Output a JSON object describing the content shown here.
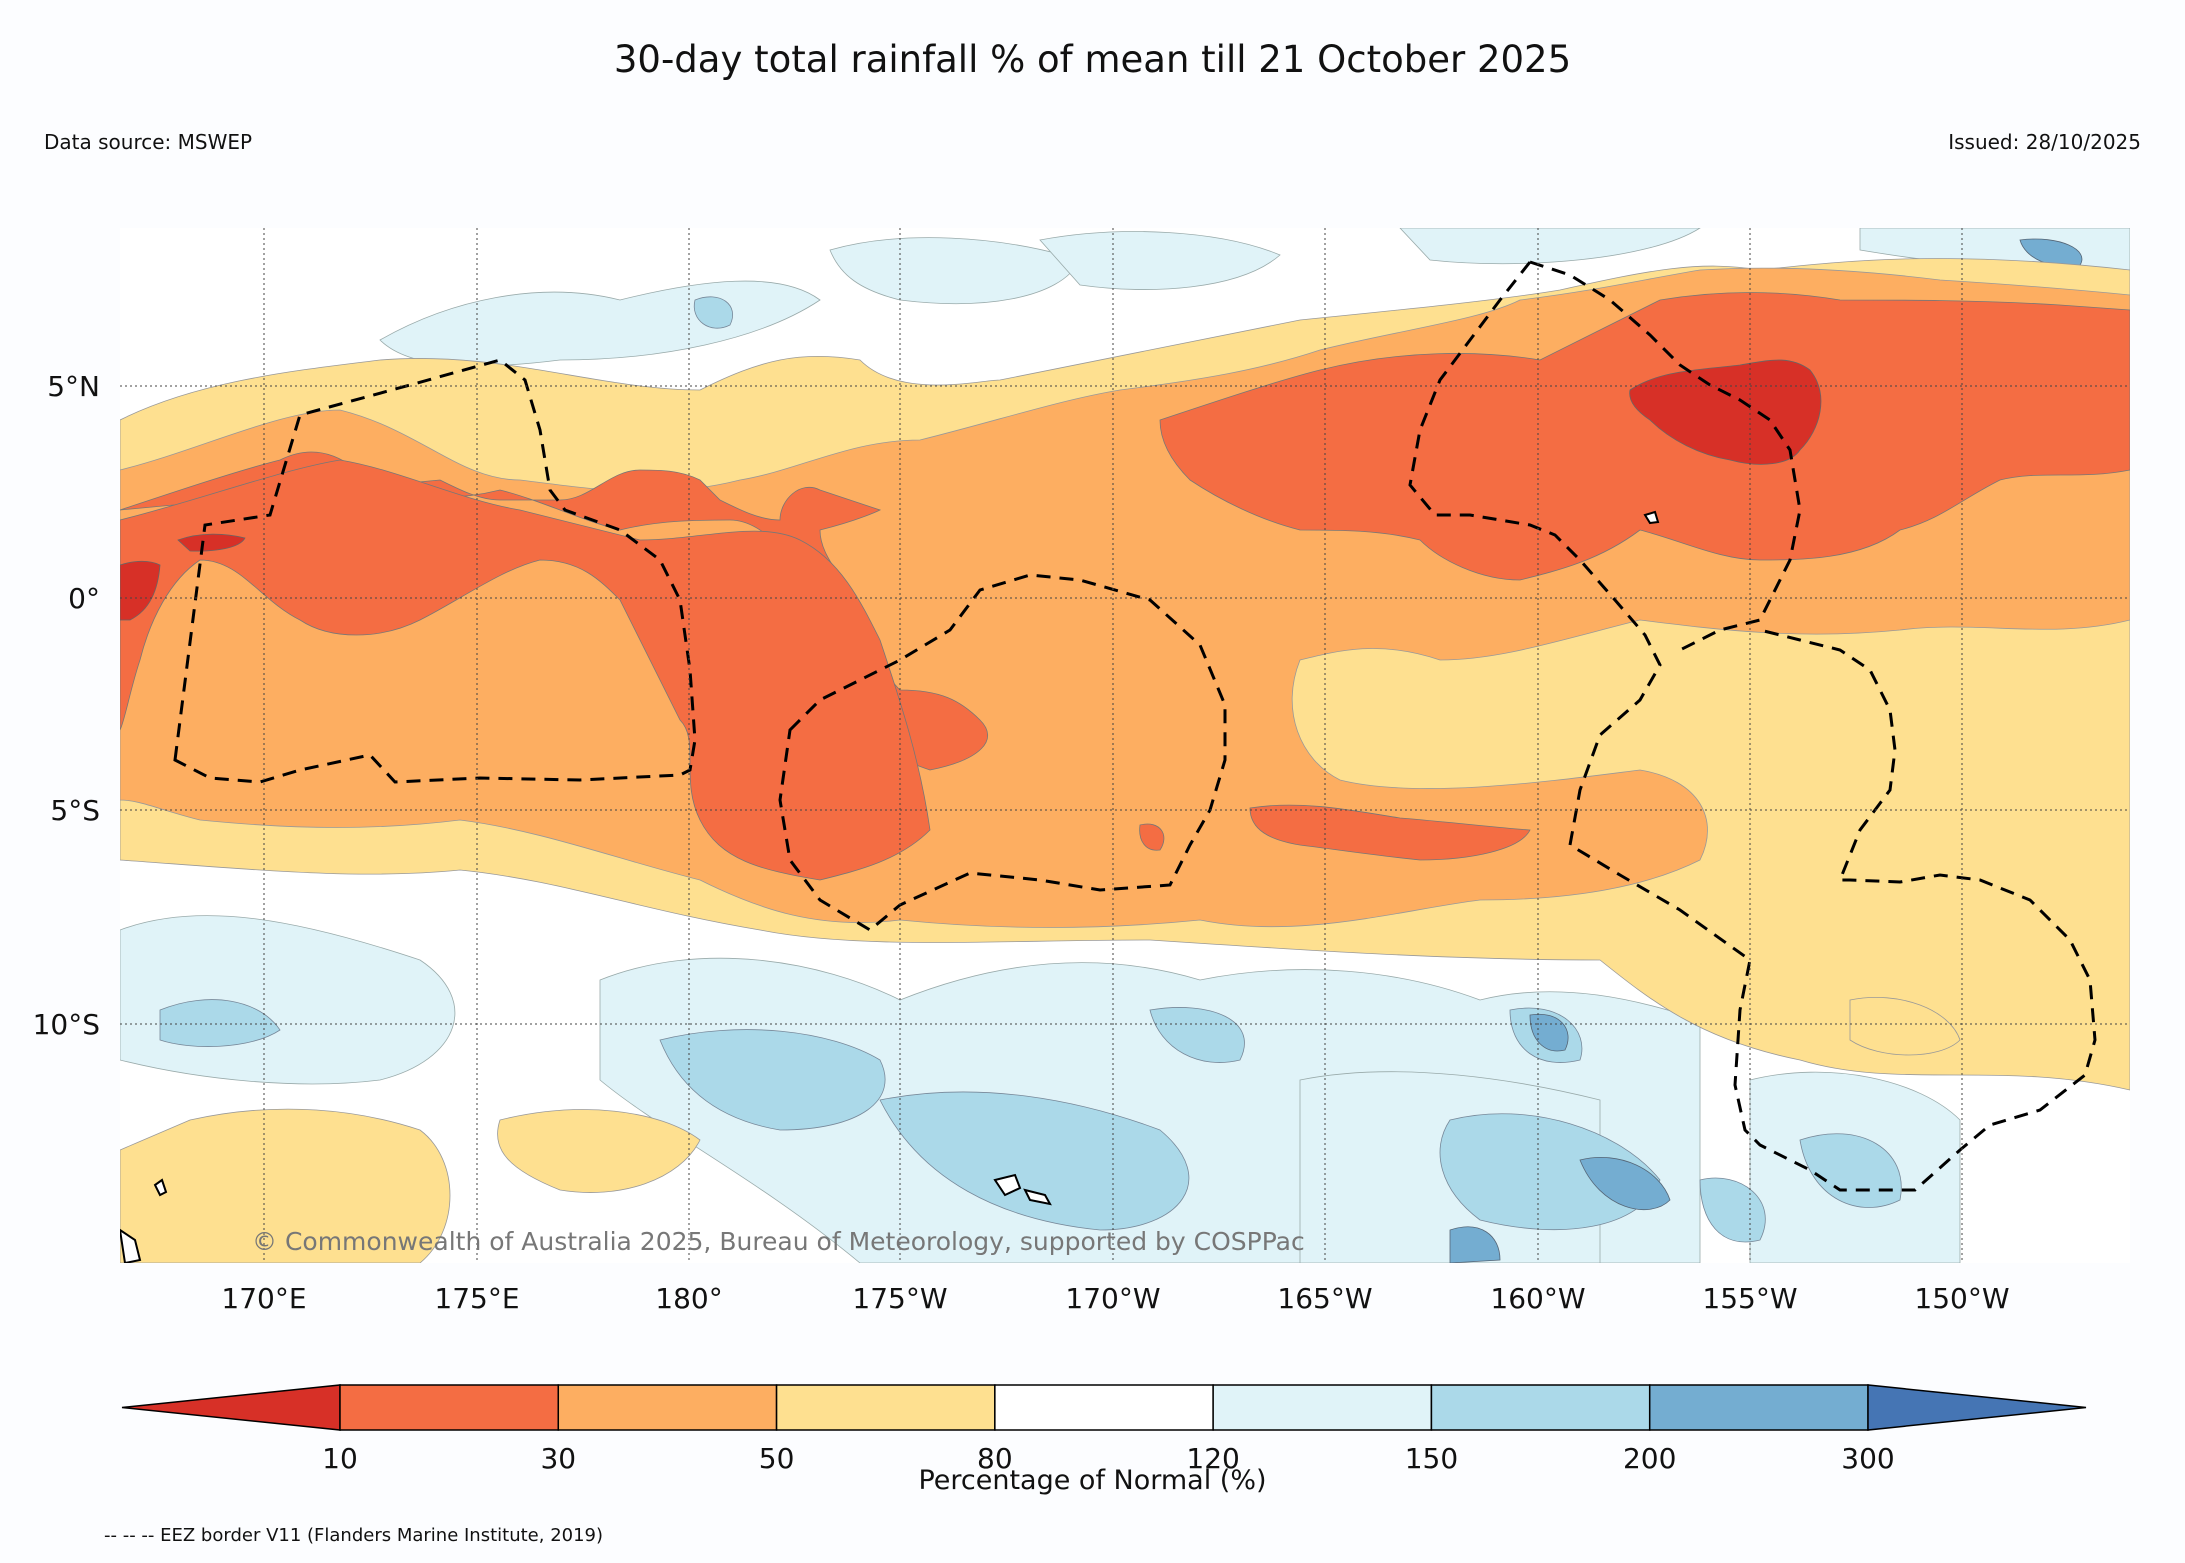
{
  "title": "30-day total rainfall % of mean till 21 October 2025",
  "data_source": "Data source: MSWEP",
  "issued": "Issued: 28/10/2025",
  "copyright": "© Commonwealth of Australia 2025, Bureau of Meteorology, supported by COSPPac",
  "footer": "-- -- -- EEZ border V11 (Flanders Marine Institute, 2019)",
  "map": {
    "lat_labels": [
      "5°N",
      "0°",
      "5°S",
      "10°S"
    ],
    "lon_labels": [
      "170°E",
      "175°E",
      "180°",
      "175°W",
      "170°W",
      "165°W",
      "160°W",
      "155°W",
      "150°W"
    ]
  },
  "colorbar": {
    "title": "Percentage of Normal (%)",
    "ticks": [
      "10",
      "30",
      "50",
      "80",
      "120",
      "150",
      "200",
      "300"
    ],
    "colors": [
      "#d73027",
      "#f46d43",
      "#fdae61",
      "#fee090",
      "#ffffff",
      "#e0f3f8",
      "#abd9e9",
      "#74add1",
      "#4575b4"
    ]
  },
  "legend_colors": {
    "very_dry": "#d73027",
    "dry": "#f46d43",
    "below": "#fdae61",
    "slightly_below": "#fee090",
    "normal": "#ffffff",
    "slightly_above": "#e0f3f8",
    "above": "#abd9e9",
    "wet": "#74add1"
  }
}
